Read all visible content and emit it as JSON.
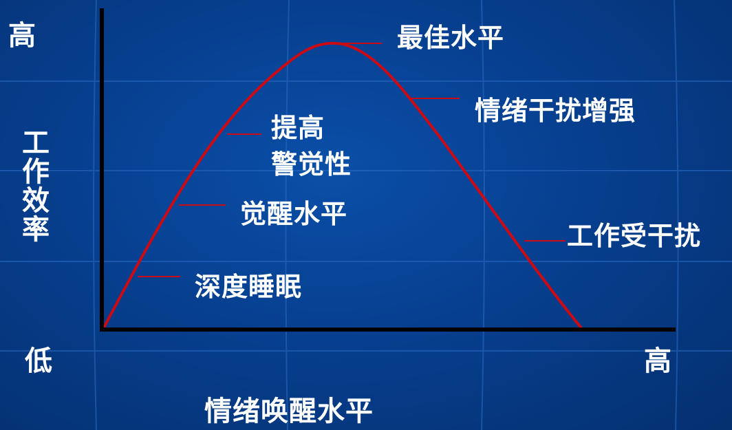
{
  "y_axis": {
    "high": "高",
    "low": "低",
    "title": "工作效率"
  },
  "x_axis": {
    "high": "高",
    "title": "情绪唤醒水平"
  },
  "curve_labels": {
    "deep_sleep": "深度睡眠",
    "arousal": "觉醒水平",
    "alertness_line1": "提高",
    "alertness_line2": "警觉性",
    "optimal": "最佳水平",
    "emotional_interference": "情绪干扰增强",
    "work_disturbed": "工作受干扰"
  },
  "colors": {
    "background": "#073f8f",
    "curve": "#cc0a14",
    "axis": "#000000",
    "text": "#ffffff"
  }
}
